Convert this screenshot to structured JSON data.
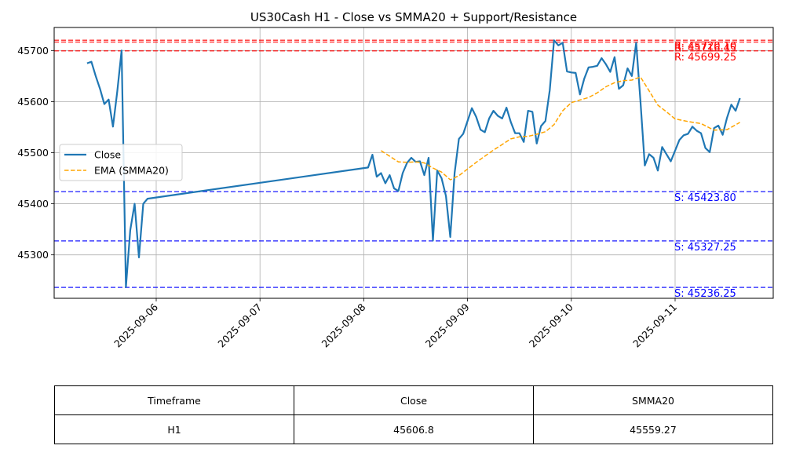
{
  "chart_data": {
    "type": "line",
    "title": "US30Cash H1 - Close vs SMMA20 + Support/Resistance",
    "xlabel": "",
    "ylabel": "",
    "x_ticks": [
      "2025-09-06",
      "2025-09-07",
      "2025-09-08",
      "2025-09-09",
      "2025-09-10",
      "2025-09-11"
    ],
    "y_ticks": [
      45300,
      45400,
      45500,
      45600,
      45700
    ],
    "ylim": [
      45215,
      45745
    ],
    "grid": true,
    "legend_position": "center-left",
    "series": [
      {
        "name": "Close",
        "color": "#1f77b4",
        "style": "solid",
        "points": [
          [
            "2025-09-05T08:00",
            45675
          ],
          [
            "2025-09-05T09:00",
            45678
          ],
          [
            "2025-09-05T10:00",
            45650
          ],
          [
            "2025-09-05T11:00",
            45625
          ],
          [
            "2025-09-05T12:00",
            45595
          ],
          [
            "2025-09-05T13:00",
            45604
          ],
          [
            "2025-09-05T14:00",
            45551
          ],
          [
            "2025-09-05T15:00",
            45620
          ],
          [
            "2025-09-05T16:00",
            45700
          ],
          [
            "2025-09-05T17:00",
            45237
          ],
          [
            "2025-09-05T18:00",
            45348
          ],
          [
            "2025-09-05T19:00",
            45400
          ],
          [
            "2025-09-05T20:00",
            45295
          ],
          [
            "2025-09-05T21:00",
            45400
          ],
          [
            "2025-09-05T22:00",
            45410
          ],
          [
            "2025-09-08T01:00",
            45471
          ],
          [
            "2025-09-08T02:00",
            45496
          ],
          [
            "2025-09-08T03:00",
            45453
          ],
          [
            "2025-09-08T04:00",
            45460
          ],
          [
            "2025-09-08T05:00",
            45440
          ],
          [
            "2025-09-08T06:00",
            45456
          ],
          [
            "2025-09-08T07:00",
            45430
          ],
          [
            "2025-09-08T08:00",
            45425
          ],
          [
            "2025-09-08T09:00",
            45460
          ],
          [
            "2025-09-08T10:00",
            45480
          ],
          [
            "2025-09-08T11:00",
            45490
          ],
          [
            "2025-09-08T12:00",
            45482
          ],
          [
            "2025-09-08T13:00",
            45483
          ],
          [
            "2025-09-08T14:00",
            45456
          ],
          [
            "2025-09-08T15:00",
            45490
          ],
          [
            "2025-09-08T16:00",
            45328
          ],
          [
            "2025-09-08T17:00",
            45465
          ],
          [
            "2025-09-08T18:00",
            45450
          ],
          [
            "2025-09-08T19:00",
            45415
          ],
          [
            "2025-09-08T20:00",
            45335
          ],
          [
            "2025-09-08T21:00",
            45460
          ],
          [
            "2025-09-08T22:00",
            45527
          ],
          [
            "2025-09-08T23:00",
            45537
          ],
          [
            "2025-09-09T00:00",
            45562
          ],
          [
            "2025-09-09T01:00",
            45587
          ],
          [
            "2025-09-09T02:00",
            45570
          ],
          [
            "2025-09-09T03:00",
            45545
          ],
          [
            "2025-09-09T04:00",
            45540
          ],
          [
            "2025-09-09T05:00",
            45567
          ],
          [
            "2025-09-09T06:00",
            45582
          ],
          [
            "2025-09-09T07:00",
            45572
          ],
          [
            "2025-09-09T08:00",
            45567
          ],
          [
            "2025-09-09T09:00",
            45588
          ],
          [
            "2025-09-09T10:00",
            45560
          ],
          [
            "2025-09-09T11:00",
            45538
          ],
          [
            "2025-09-09T12:00",
            45538
          ],
          [
            "2025-09-09T13:00",
            45521
          ],
          [
            "2025-09-09T14:00",
            45582
          ],
          [
            "2025-09-09T15:00",
            45580
          ],
          [
            "2025-09-09T16:00",
            45518
          ],
          [
            "2025-09-09T17:00",
            45552
          ],
          [
            "2025-09-09T18:00",
            45562
          ],
          [
            "2025-09-09T19:00",
            45622
          ],
          [
            "2025-09-09T20:00",
            45720
          ],
          [
            "2025-09-09T21:00",
            45710
          ],
          [
            "2025-09-09T22:00",
            45715
          ],
          [
            "2025-09-09T23:00",
            45659
          ],
          [
            "2025-09-10T00:00",
            45657
          ],
          [
            "2025-09-10T01:00",
            45656
          ],
          [
            "2025-09-10T02:00",
            45614
          ],
          [
            "2025-09-10T03:00",
            45645
          ],
          [
            "2025-09-10T04:00",
            45667
          ],
          [
            "2025-09-10T05:00",
            45668
          ],
          [
            "2025-09-10T06:00",
            45670
          ],
          [
            "2025-09-10T07:00",
            45685
          ],
          [
            "2025-09-10T08:00",
            45673
          ],
          [
            "2025-09-10T09:00",
            45658
          ],
          [
            "2025-09-10T10:00",
            45687
          ],
          [
            "2025-09-10T11:00",
            45625
          ],
          [
            "2025-09-10T12:00",
            45632
          ],
          [
            "2025-09-10T13:00",
            45665
          ],
          [
            "2025-09-10T14:00",
            45650
          ],
          [
            "2025-09-10T15:00",
            45715
          ],
          [
            "2025-09-10T16:00",
            45600
          ],
          [
            "2025-09-10T17:00",
            45475
          ],
          [
            "2025-09-10T18:00",
            45497
          ],
          [
            "2025-09-10T19:00",
            45490
          ],
          [
            "2025-09-10T20:00",
            45465
          ],
          [
            "2025-09-10T21:00",
            45511
          ],
          [
            "2025-09-10T22:00",
            45497
          ],
          [
            "2025-09-10T23:00",
            45483
          ],
          [
            "2025-09-11T00:00",
            45504
          ],
          [
            "2025-09-11T01:00",
            45525
          ],
          [
            "2025-09-11T02:00",
            45534
          ],
          [
            "2025-09-11T03:00",
            45537
          ],
          [
            "2025-09-11T04:00",
            45551
          ],
          [
            "2025-09-11T05:00",
            45543
          ],
          [
            "2025-09-11T06:00",
            45538
          ],
          [
            "2025-09-11T07:00",
            45509
          ],
          [
            "2025-09-11T08:00",
            45501
          ],
          [
            "2025-09-11T09:00",
            45548
          ],
          [
            "2025-09-11T10:00",
            45553
          ],
          [
            "2025-09-11T11:00",
            45535
          ],
          [
            "2025-09-11T12:00",
            45568
          ],
          [
            "2025-09-11T13:00",
            45594
          ],
          [
            "2025-09-11T14:00",
            45582
          ],
          [
            "2025-09-11T15:00",
            45606.8
          ]
        ]
      },
      {
        "name": "EMA (SMMA20)",
        "color": "#ffa500",
        "style": "dashed",
        "points": [
          [
            "2025-09-08T04:00",
            45504
          ],
          [
            "2025-09-08T06:00",
            45493
          ],
          [
            "2025-09-08T08:00",
            45482
          ],
          [
            "2025-09-08T10:00",
            45481
          ],
          [
            "2025-09-08T12:00",
            45482
          ],
          [
            "2025-09-08T14:00",
            45480
          ],
          [
            "2025-09-08T16:00",
            45470
          ],
          [
            "2025-09-08T18:00",
            45462
          ],
          [
            "2025-09-08T20:00",
            45447
          ],
          [
            "2025-09-08T22:00",
            45455
          ],
          [
            "2025-09-09T00:00",
            45468
          ],
          [
            "2025-09-09T02:00",
            45481
          ],
          [
            "2025-09-09T04:00",
            45493
          ],
          [
            "2025-09-09T06:00",
            45505
          ],
          [
            "2025-09-09T08:00",
            45516
          ],
          [
            "2025-09-09T10:00",
            45527
          ],
          [
            "2025-09-09T12:00",
            45531
          ],
          [
            "2025-09-09T14:00",
            45532
          ],
          [
            "2025-09-09T16:00",
            45536
          ],
          [
            "2025-09-09T18:00",
            45541
          ],
          [
            "2025-09-09T20:00",
            45555
          ],
          [
            "2025-09-09T22:00",
            45582
          ],
          [
            "2025-09-10T00:00",
            45598
          ],
          [
            "2025-09-10T02:00",
            45603
          ],
          [
            "2025-09-10T04:00",
            45608
          ],
          [
            "2025-09-10T06:00",
            45617
          ],
          [
            "2025-09-10T08:00",
            45629
          ],
          [
            "2025-09-10T10:00",
            45637
          ],
          [
            "2025-09-10T12:00",
            45641
          ],
          [
            "2025-09-10T14:00",
            45642
          ],
          [
            "2025-09-10T16:00",
            45648
          ],
          [
            "2025-09-10T18:00",
            45621
          ],
          [
            "2025-09-10T20:00",
            45593
          ],
          [
            "2025-09-10T22:00",
            45580
          ],
          [
            "2025-09-11T00:00",
            45566
          ],
          [
            "2025-09-11T03:00",
            45561
          ],
          [
            "2025-09-11T06:00",
            45557
          ],
          [
            "2025-09-11T09:00",
            45544
          ],
          [
            "2025-09-11T12:00",
            45545
          ],
          [
            "2025-09-11T15:00",
            45559.27
          ]
        ]
      }
    ],
    "levels": [
      {
        "kind": "resistance",
        "value": 45720.1,
        "label": "R: 45720.10",
        "color": "#ff0000"
      },
      {
        "kind": "resistance",
        "value": 45716.45,
        "label": "R: 45716.45",
        "color": "#ff0000"
      },
      {
        "kind": "resistance",
        "value": 45699.25,
        "label": "R: 45699.25",
        "color": "#ff0000"
      },
      {
        "kind": "support",
        "value": 45423.8,
        "label": "S: 45423.80",
        "color": "#0000ff"
      },
      {
        "kind": "support",
        "value": 45327.25,
        "label": "S: 45327.25",
        "color": "#0000ff"
      },
      {
        "kind": "support",
        "value": 45236.25,
        "label": "S: 45236.25",
        "color": "#0000ff"
      }
    ],
    "table": {
      "headers": [
        "Timeframe",
        "Close",
        "SMMA20"
      ],
      "rows": [
        [
          "H1",
          "45606.8",
          "45559.27"
        ]
      ]
    }
  }
}
